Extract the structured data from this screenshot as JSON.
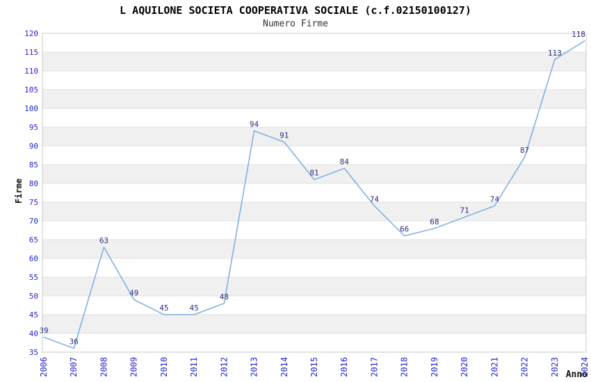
{
  "chart_data": {
    "type": "line",
    "title": "L AQUILONE SOCIETA COOPERATIVA SOCIALE (c.f.02150100127)",
    "subtitle": "Numero Firme",
    "xlabel": "Anno",
    "ylabel": "Firme",
    "categories": [
      "2006",
      "2007",
      "2008",
      "2009",
      "2010",
      "2011",
      "2012",
      "2013",
      "2014",
      "2015",
      "2016",
      "2017",
      "2018",
      "2019",
      "2020",
      "2021",
      "2022",
      "2023",
      "2024"
    ],
    "values": [
      39,
      36,
      63,
      49,
      45,
      45,
      48,
      94,
      91,
      81,
      84,
      74,
      66,
      68,
      71,
      74,
      87,
      113,
      118
    ],
    "ylim": [
      35,
      120
    ],
    "ytick_step": 5,
    "yticks": [
      35,
      40,
      45,
      50,
      55,
      60,
      65,
      70,
      75,
      80,
      85,
      90,
      95,
      100,
      105,
      110,
      115,
      120
    ],
    "grid": "horizontal-only",
    "banded_background": true,
    "legend": "none",
    "point_labels_visible": true,
    "colors": {
      "line": "#7aade0",
      "tick_label": "#2424cf",
      "point_label": "#2b2b80",
      "band_gray": "#f0f0f0",
      "gridline": "#e0e0e0",
      "plot_border": "#c9c9c9",
      "title": "#000000",
      "subtitle": "#333333",
      "axis_title": "#111111",
      "background": "#ffffff"
    }
  }
}
